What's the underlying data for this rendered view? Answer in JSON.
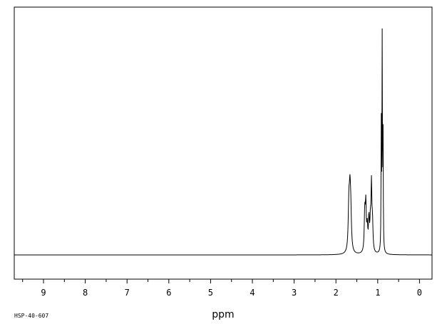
{
  "chart_data": {
    "type": "line",
    "xlabel": "ppm",
    "xlim": [
      9.7,
      -0.3
    ],
    "x_reversed": true,
    "ylim": [
      0,
      1
    ],
    "grid": false,
    "major_ticks": [
      9,
      8,
      7,
      6,
      5,
      4,
      3,
      2,
      1,
      0
    ],
    "tick_labels": [
      "9",
      "8",
      "7",
      "6",
      "5",
      "4",
      "3",
      "2",
      "1",
      "0"
    ],
    "baseline_y": 0.0,
    "peaks": [
      {
        "ppm": 1.69,
        "height": 0.2,
        "width": 0.018
      },
      {
        "ppm": 1.665,
        "height": 0.22,
        "width": 0.018
      },
      {
        "ppm": 1.645,
        "height": 0.15,
        "width": 0.018
      },
      {
        "ppm": 1.31,
        "height": 0.17,
        "width": 0.014
      },
      {
        "ppm": 1.285,
        "height": 0.2,
        "width": 0.014
      },
      {
        "ppm": 1.25,
        "height": 0.1,
        "width": 0.014
      },
      {
        "ppm": 1.21,
        "height": 0.14,
        "width": 0.014
      },
      {
        "ppm": 1.175,
        "height": 0.12,
        "width": 0.014
      },
      {
        "ppm": 1.15,
        "height": 0.28,
        "width": 0.012
      },
      {
        "ppm": 1.125,
        "height": 0.12,
        "width": 0.014
      },
      {
        "ppm": 0.915,
        "height": 0.55,
        "width": 0.006
      },
      {
        "ppm": 0.893,
        "height": 0.97,
        "width": 0.006
      },
      {
        "ppm": 0.872,
        "height": 0.5,
        "width": 0.006
      }
    ]
  },
  "footer": {
    "code": "HSP-40-607"
  }
}
